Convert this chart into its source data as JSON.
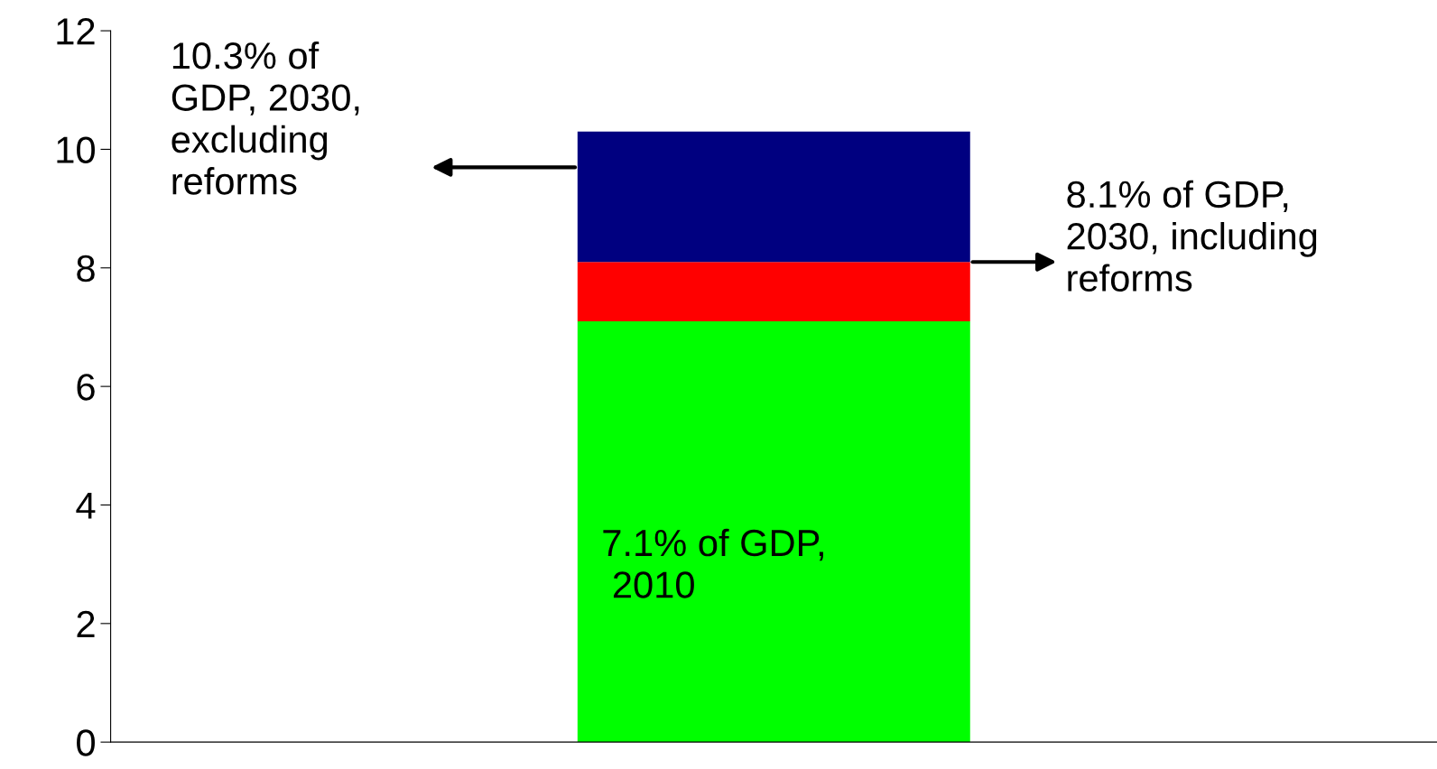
{
  "chart_data": {
    "type": "bar",
    "stacked": true,
    "categories": [
      null
    ],
    "series": [
      {
        "color": "#00ff00",
        "values": [
          7.1
        ]
      },
      {
        "color": "#ff0000",
        "values": [
          1.0
        ]
      },
      {
        "color": "#000080",
        "values": [
          2.2
        ]
      }
    ],
    "ylim": [
      0,
      12
    ],
    "yticks": [
      0,
      2,
      4,
      6,
      8,
      10,
      12
    ],
    "tick_labels": "y",
    "grid": false,
    "annotations": [
      "10.3% of\nGDP, 2030,\nexcluding\nreforms",
      "8.1% of GDP,\n2030, including\nreforms",
      "7.1% of GDP,\n 2010"
    ]
  }
}
